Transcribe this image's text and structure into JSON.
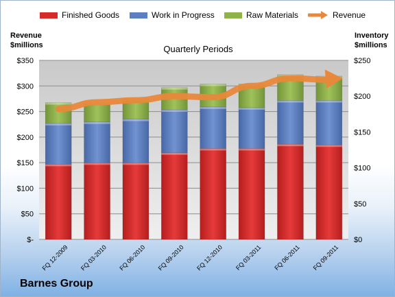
{
  "chart_data": {
    "type": "bar",
    "stacked": true,
    "title": "Barnes Group",
    "subtitle": "Quarterly Periods",
    "categories": [
      "FQ 12-2009",
      "FQ 03-2010",
      "FQ 06-2010",
      "FQ 09-2010",
      "FQ 12-2010",
      "FQ 03-2011",
      "FQ 06-2011",
      "FQ 09-2011"
    ],
    "series": [
      {
        "name": "Finished Goods",
        "axis": "right",
        "color": "#d42a2a",
        "values": [
          105,
          107,
          107,
          121,
          127,
          127,
          133,
          132
        ]
      },
      {
        "name": "Work in Progress",
        "axis": "right",
        "color": "#5b7fc0",
        "values": [
          57,
          57,
          61,
          60,
          58,
          57,
          61,
          62
        ]
      },
      {
        "name": "Raw Materials",
        "axis": "right",
        "color": "#8fb24a",
        "values": [
          29,
          27,
          28,
          31,
          32,
          33,
          36,
          34
        ]
      },
      {
        "name": "Revenue",
        "axis": "left",
        "type": "line",
        "color": "#e8883a",
        "values": [
          255,
          268,
          272,
          280,
          278,
          300,
          315,
          312
        ]
      }
    ],
    "ylabel_left": "Revenue $millions",
    "ylabel_right": "Inventory $millions",
    "ylim_left": [
      0,
      350
    ],
    "yticks_left": [
      "$-",
      "$50",
      "$100",
      "$150",
      "$200",
      "$250",
      "$300",
      "$350"
    ],
    "ylim_right": [
      0,
      250
    ],
    "yticks_right": [
      "$0",
      "$50",
      "$100",
      "$150",
      "$200",
      "$250"
    ],
    "grid": true,
    "legend": "top"
  },
  "legend": {
    "finished": "Finished Goods",
    "wip": "Work in Progress",
    "raw": "Raw Materials",
    "revenue": "Revenue"
  },
  "labels": {
    "company": "Barnes Group",
    "subtitle": "Quarterly Periods",
    "left_axis_line1": "Revenue",
    "left_axis_line2": "$millions",
    "right_axis_line1": "Inventory",
    "right_axis_line2": "$millions"
  }
}
